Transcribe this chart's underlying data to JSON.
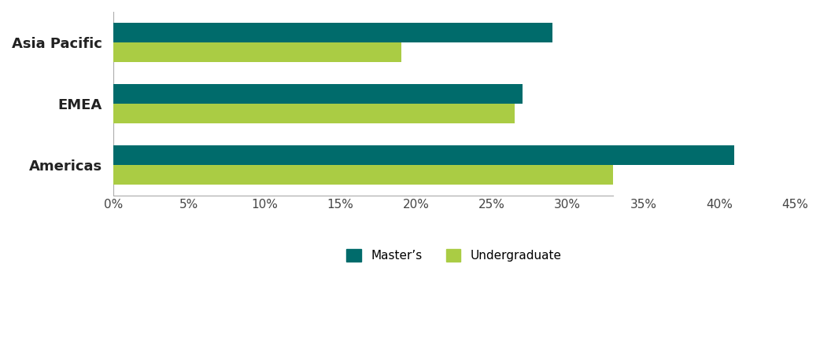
{
  "categories": [
    "Asia Pacific",
    "EMEA",
    "Americas"
  ],
  "masters_values": [
    0.29,
    0.27,
    0.41
  ],
  "undergrad_values": [
    0.19,
    0.265,
    0.33
  ],
  "masters_color": "#006B6B",
  "undergrad_color": "#AACC44",
  "background_color": "#FFFFFF",
  "xlim": [
    0,
    0.45
  ],
  "xtick_values": [
    0.0,
    0.05,
    0.1,
    0.15,
    0.2,
    0.25,
    0.3,
    0.35,
    0.4,
    0.45
  ],
  "xtick_labels": [
    "0%",
    "5%",
    "10%",
    "15%",
    "20%",
    "25%",
    "30%",
    "35%",
    "40%",
    "45%"
  ],
  "legend_masters": "Master’s",
  "legend_undergrad": "Undergraduate",
  "bar_height": 0.32,
  "ylabel_fontsize": 13,
  "tick_fontsize": 11,
  "legend_fontsize": 11
}
